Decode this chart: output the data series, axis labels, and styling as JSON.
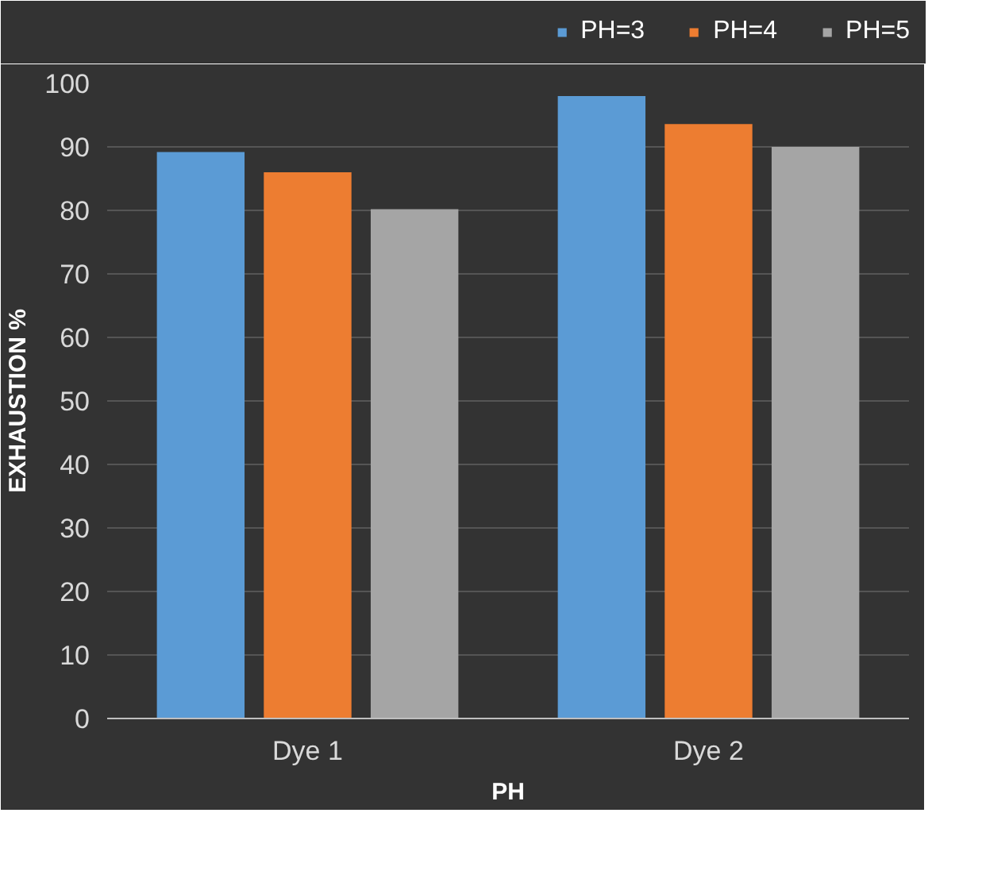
{
  "chart_data": {
    "type": "bar",
    "xlabel": "PH",
    "ylabel": "EXHAUSTION %",
    "categories": [
      "Dye 1",
      "Dye 2"
    ],
    "series": [
      {
        "name": "PH=3",
        "color": "#5b9bd5",
        "values": [
          89.2,
          98
        ]
      },
      {
        "name": "PH=4",
        "color": "#ed7d31",
        "values": [
          86,
          93.6
        ]
      },
      {
        "name": "PH=5",
        "color": "#a5a5a5",
        "values": [
          80.2,
          90
        ]
      }
    ],
    "ylim": [
      0,
      100
    ],
    "yticks": [
      0,
      10,
      20,
      30,
      40,
      50,
      60,
      70,
      80,
      90,
      100
    ],
    "grid": "y",
    "legend": "top right"
  }
}
